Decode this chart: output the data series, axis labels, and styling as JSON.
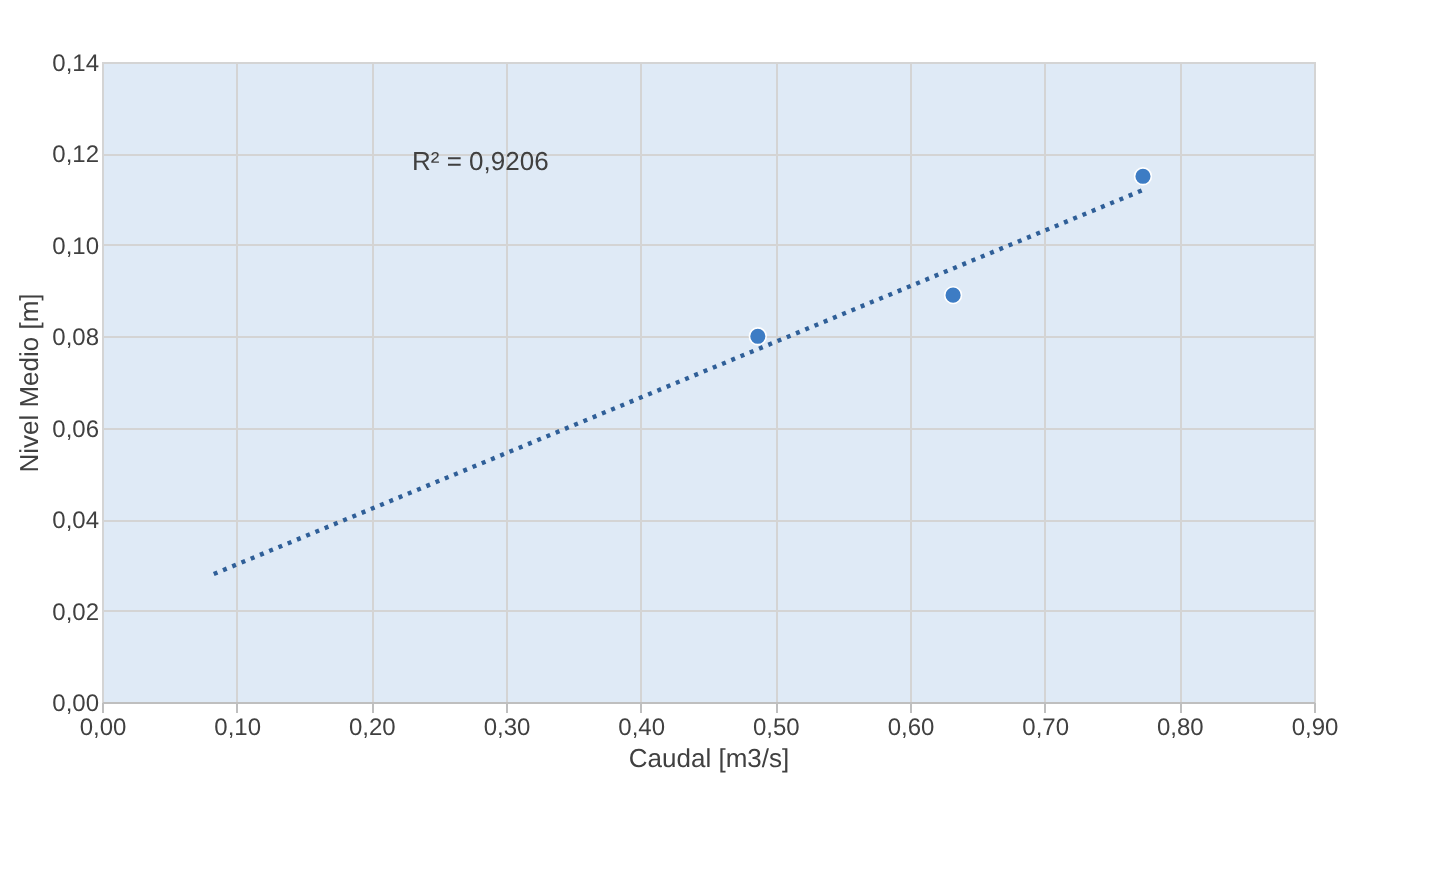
{
  "chart_data": {
    "type": "scatter",
    "xlabel": "Caudal [m3/s]",
    "ylabel": "Nivel Medio [m]",
    "annotations": [
      "R² = 0,9206"
    ],
    "xlim": [
      0,
      0.9
    ],
    "xticks": [
      {
        "value": 0,
        "label": "0,00"
      },
      {
        "value": 0.1,
        "label": "0,10"
      },
      {
        "value": 0.2,
        "label": "0,20"
      },
      {
        "value": 0.3,
        "label": "0,30"
      },
      {
        "value": 0.4,
        "label": "0,40"
      },
      {
        "value": 0.5,
        "label": "0,50"
      },
      {
        "value": 0.6,
        "label": "0,60"
      },
      {
        "value": 0.7,
        "label": "0,70"
      },
      {
        "value": 0.8,
        "label": "0,80"
      },
      {
        "value": 0.9,
        "label": "0,90"
      }
    ],
    "ylim": [
      0,
      0.14
    ],
    "yticks": [
      {
        "value": 0,
        "label": "0,00"
      },
      {
        "value": 0.02,
        "label": "0,02"
      },
      {
        "value": 0.04,
        "label": "0,04"
      },
      {
        "value": 0.06,
        "label": "0,06"
      },
      {
        "value": 0.08,
        "label": "0,08"
      },
      {
        "value": 0.1,
        "label": "0,10"
      },
      {
        "value": 0.12,
        "label": "0,12"
      },
      {
        "value": 0.14,
        "label": "0,14"
      }
    ],
    "grid": true,
    "series": [
      {
        "marker": "circle",
        "color": "#3d7cc4",
        "x": [
          0.487,
          0.632,
          0.773
        ],
        "values": [
          0.08,
          0.089,
          0.115
        ]
      },
      {
        "type": "line",
        "marker": "none",
        "color": "#2f5f98",
        "line_style": "dotted",
        "x": [
          0.083,
          0.773
        ],
        "values": [
          0.028,
          0.112
        ]
      }
    ]
  }
}
